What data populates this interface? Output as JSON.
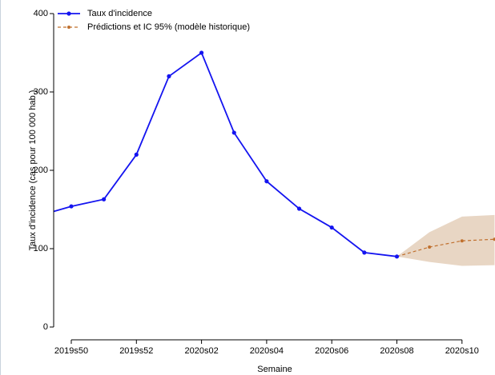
{
  "chart_data": {
    "type": "line",
    "x_label": "Semaine",
    "y_label": "Taux d'incidence (cas pour 100 000 hab.)",
    "categories": [
      null,
      "2019s50",
      null,
      "2019s52",
      null,
      "2020s02",
      null,
      "2020s04",
      null,
      "2020s06",
      null,
      "2020s08",
      null,
      "2020s10",
      null
    ],
    "series": [
      {
        "name": "Taux d'incidence",
        "color": "#1414f0",
        "values": [
          142,
          154,
          163,
          220,
          320,
          350,
          248,
          186,
          151,
          127,
          95,
          90,
          null,
          null,
          null
        ]
      },
      {
        "name": "Prédictions et IC 95% (modèle historique)",
        "color": "#c0702e",
        "band_color": "#e8d6c4",
        "values": [
          null,
          null,
          null,
          null,
          null,
          null,
          null,
          null,
          null,
          null,
          null,
          90,
          102,
          110,
          112
        ],
        "lower": [
          null,
          null,
          null,
          null,
          null,
          null,
          null,
          null,
          null,
          null,
          null,
          90,
          83,
          78,
          79
        ],
        "upper": [
          null,
          null,
          null,
          null,
          null,
          null,
          null,
          null,
          null,
          null,
          null,
          90,
          121,
          141,
          143
        ]
      }
    ],
    "ylim": [
      0,
      400
    ],
    "yticks": [
      0,
      100,
      200,
      300,
      400
    ],
    "legend": "top-left"
  }
}
